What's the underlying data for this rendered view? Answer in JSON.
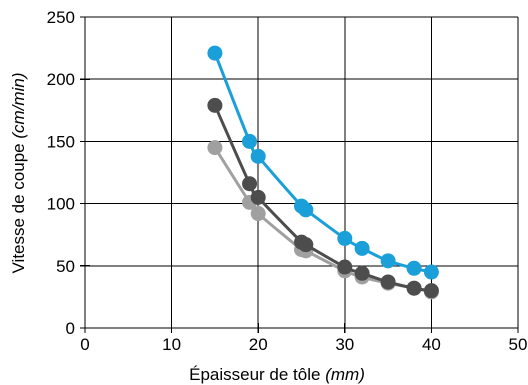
{
  "chart_data": {
    "type": "scatter",
    "title": "",
    "xlabel": "Épaisseur de tôle",
    "xlabel_unit": "(mm)",
    "ylabel": "Vitesse de coupe",
    "ylabel_unit": "(cm/min)",
    "xlim": [
      0,
      50
    ],
    "ylim": [
      0,
      250
    ],
    "x_ticks": [
      0,
      10,
      20,
      30,
      40,
      50
    ],
    "y_ticks": [
      0,
      50,
      100,
      150,
      200,
      250
    ],
    "grid": true,
    "legend": "none",
    "series": [
      {
        "color": "#1a9fd8",
        "points": [
          {
            "x": 15,
            "y": 221
          },
          {
            "x": 19,
            "y": 150
          },
          {
            "x": 20,
            "y": 138
          },
          {
            "x": 25,
            "y": 98
          },
          {
            "x": 25.5,
            "y": 95
          },
          {
            "x": 30,
            "y": 72
          },
          {
            "x": 32,
            "y": 64
          },
          {
            "x": 35,
            "y": 54
          },
          {
            "x": 38,
            "y": 48
          },
          {
            "x": 40,
            "y": 45
          }
        ]
      },
      {
        "color": "#4d4d4d",
        "points": [
          {
            "x": 15,
            "y": 179
          },
          {
            "x": 19,
            "y": 116
          },
          {
            "x": 20,
            "y": 105
          },
          {
            "x": 25,
            "y": 69
          },
          {
            "x": 25.5,
            "y": 67
          },
          {
            "x": 30,
            "y": 49
          },
          {
            "x": 32,
            "y": 44
          },
          {
            "x": 35,
            "y": 37
          },
          {
            "x": 38,
            "y": 32
          },
          {
            "x": 40,
            "y": 30
          }
        ]
      },
      {
        "color": "#a0a0a0",
        "points": [
          {
            "x": 15,
            "y": 145
          },
          {
            "x": 19,
            "y": 101
          },
          {
            "x": 20,
            "y": 92
          },
          {
            "x": 25,
            "y": 63
          },
          {
            "x": 25.5,
            "y": 62
          },
          {
            "x": 30,
            "y": 46
          },
          {
            "x": 32,
            "y": 41
          },
          {
            "x": 35,
            "y": 36
          },
          {
            "x": 38,
            "y": 32
          },
          {
            "x": 40,
            "y": 29
          }
        ]
      }
    ]
  }
}
